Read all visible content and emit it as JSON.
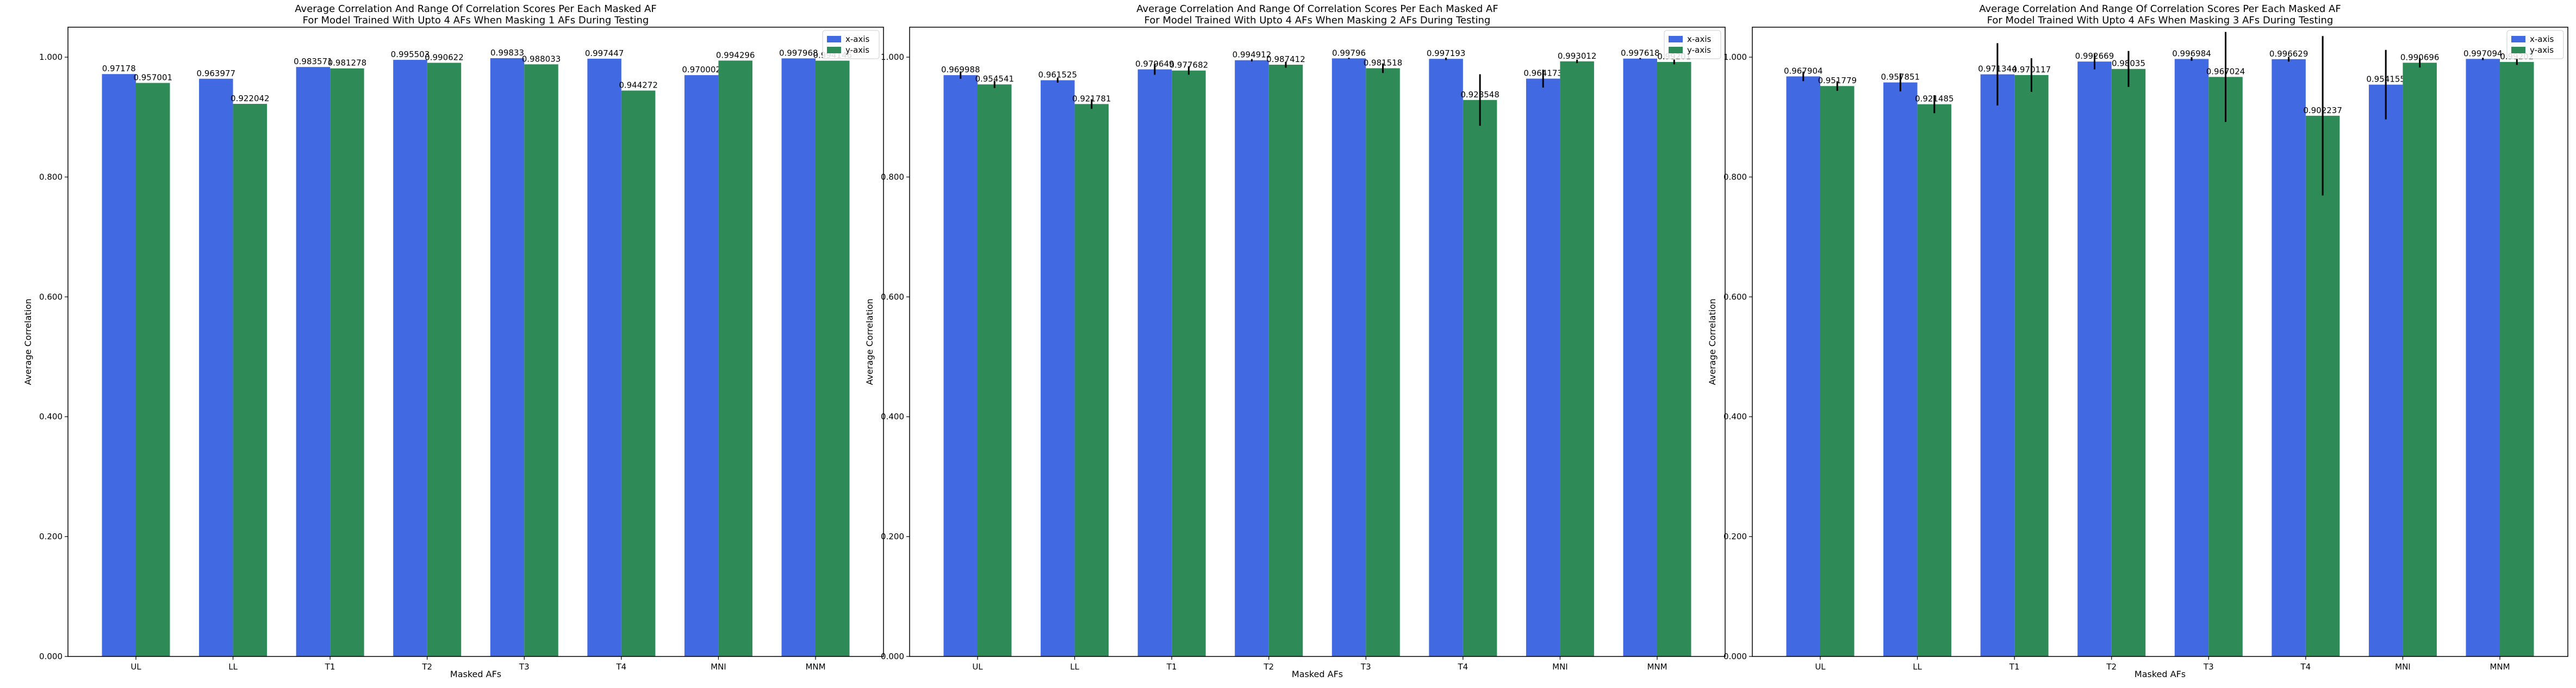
{
  "figure": {
    "panels": [
      {
        "title_line1": "Average Correlation And Range Of Correlation Scores Per Each Masked AF",
        "title_line2": "For Model Trained With Upto 4 AFs When Masking 1 AFs During Testing",
        "xlabel": "Masked AFs",
        "ylabel": "Average Correlation"
      },
      {
        "title_line1": "Average Correlation And Range Of Correlation Scores Per Each Masked AF",
        "title_line2": "For Model Trained With Upto 4 AFs When Masking 2 AFs During Testing",
        "xlabel": "Masked AFs",
        "ylabel": "Average Correlation"
      },
      {
        "title_line1": "Average Correlation And Range Of Correlation Scores Per Each Masked AF",
        "title_line2": "For Model Trained With Upto 4 AFs When Masking 3 AFs During Testing",
        "xlabel": "Masked AFs",
        "ylabel": "Average Correlation"
      }
    ]
  },
  "chart_data": [
    {
      "type": "bar",
      "title": "Average Correlation And Range Of Correlation Scores Per Each Masked AF\nFor Model Trained With Upto 4 AFs When Masking 1 AFs During Testing",
      "xlabel": "Masked AFs",
      "ylabel": "Average Correlation",
      "ylim": [
        0,
        1.05
      ],
      "yticks": [
        "0.000",
        "0.200",
        "0.400",
        "0.600",
        "0.800",
        "1.000"
      ],
      "categories": [
        "UL",
        "LL",
        "T1",
        "T2",
        "T3",
        "T4",
        "MNI",
        "MNM"
      ],
      "legend_position": "top-right",
      "series": [
        {
          "name": "x-axis",
          "color": "#4169e1",
          "values": [
            0.97178,
            0.963977,
            0.983571,
            0.995503,
            0.99833,
            0.997447,
            0.970002,
            0.997968
          ],
          "labels": [
            "0.97178",
            "0.963977",
            "0.983571",
            "0.995503",
            "0.99833",
            "0.997447",
            "0.970002",
            "0.997968"
          ],
          "err": [
            0,
            0,
            0,
            0,
            0,
            0,
            0,
            0
          ]
        },
        {
          "name": "y-axis",
          "color": "#2e8b57",
          "values": [
            0.957001,
            0.922042,
            0.981278,
            0.990622,
            0.988033,
            0.944272,
            0.994296,
            0.994146
          ],
          "labels": [
            "0.957001",
            "0.922042",
            "0.981278",
            "0.990622",
            "0.988033",
            "0.944272",
            "0.994296",
            "0.994146"
          ],
          "err": [
            0,
            0,
            0,
            0,
            0,
            0,
            0,
            0
          ]
        }
      ]
    },
    {
      "type": "bar",
      "title": "Average Correlation And Range Of Correlation Scores Per Each Masked AF\nFor Model Trained With Upto 4 AFs When Masking 2 AFs During Testing",
      "xlabel": "Masked AFs",
      "ylabel": "Average Correlation",
      "ylim": [
        0,
        1.05
      ],
      "yticks": [
        "0.000",
        "0.200",
        "0.400",
        "0.600",
        "0.800",
        "1.000"
      ],
      "categories": [
        "UL",
        "LL",
        "T1",
        "T2",
        "T3",
        "T4",
        "MNI",
        "MNM"
      ],
      "legend_position": "top-right",
      "series": [
        {
          "name": "x-axis",
          "color": "#4169e1",
          "values": [
            0.969988,
            0.961525,
            0.979649,
            0.994912,
            0.99796,
            0.997193,
            0.964173,
            0.997618
          ],
          "labels": [
            "0.969988",
            "0.961525",
            "0.979649",
            "0.994912",
            "0.99796",
            "0.997193",
            "0.964173",
            "0.997618"
          ],
          "err": [
            0.012,
            0.008,
            0.018,
            0.004,
            0.002,
            0.004,
            0.03,
            0.002
          ]
        },
        {
          "name": "y-axis",
          "color": "#2e8b57",
          "values": [
            0.954541,
            0.921781,
            0.977682,
            0.987412,
            0.981518,
            0.928548,
            0.993012,
            0.99201
          ],
          "labels": [
            "0.954541",
            "0.921781",
            "0.977682",
            "0.987412",
            "0.981518",
            "0.928548",
            "0.993012",
            "0.99201"
          ],
          "err": [
            0.012,
            0.016,
            0.014,
            0.01,
            0.016,
            0.086,
            0.006,
            0.008
          ]
        }
      ]
    },
    {
      "type": "bar",
      "title": "Average Correlation And Range Of Correlation Scores Per Each Masked AF\nFor Model Trained With Upto 4 AFs When Masking 3 AFs During Testing",
      "xlabel": "Masked AFs",
      "ylabel": "Average Correlation",
      "ylim": [
        0,
        1.05
      ],
      "yticks": [
        "0.000",
        "0.200",
        "0.400",
        "0.600",
        "0.800",
        "1.000"
      ],
      "categories": [
        "UL",
        "LL",
        "T1",
        "T2",
        "T3",
        "T4",
        "MNI",
        "MNM"
      ],
      "legend_position": "top-right",
      "series": [
        {
          "name": "x-axis",
          "color": "#4169e1",
          "values": [
            0.967904,
            0.957851,
            0.971344,
            0.992669,
            0.996984,
            0.996629,
            0.954155,
            0.997094
          ],
          "labels": [
            "0.967904",
            "0.957851",
            "0.971344",
            "0.992669",
            "0.996984",
            "0.996629",
            "0.954155",
            "0.997094"
          ],
          "err": [
            0.016,
            0.03,
            0.104,
            0.026,
            0.006,
            0.008,
            0.116,
            0.004
          ]
        },
        {
          "name": "y-axis",
          "color": "#2e8b57",
          "values": [
            0.951779,
            0.921485,
            0.970117,
            0.98035,
            0.967024,
            0.902237,
            0.990696,
            0.99202
          ],
          "labels": [
            "0.951779",
            "0.921485",
            "0.970117",
            "0.98035",
            "0.967024",
            "0.902237",
            "0.990696",
            "0.99202"
          ],
          "err": [
            0.016,
            0.03,
            0.056,
            0.06,
            0.15,
            0.266,
            0.016,
            0.01
          ]
        }
      ]
    }
  ]
}
